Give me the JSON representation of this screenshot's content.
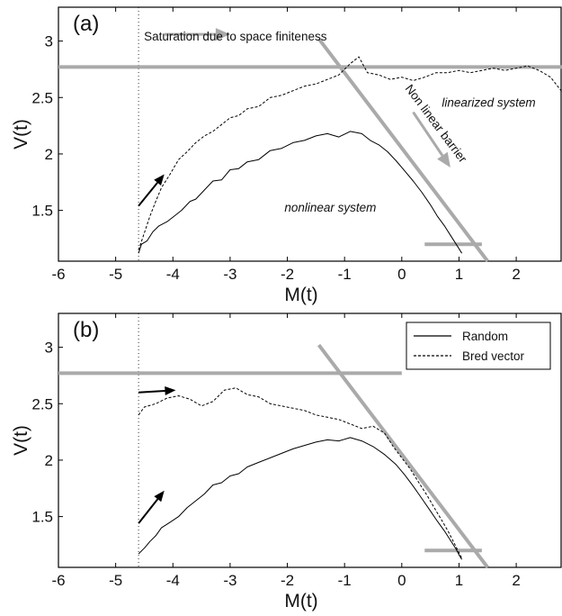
{
  "chart_data": [
    {
      "panel_label": "(a)",
      "type": "line",
      "xlabel": "M(t)",
      "ylabel": "V(t)",
      "xlim": [
        -6,
        2.8
      ],
      "ylim": [
        1.05,
        3.3
      ],
      "x_ticks": [
        "-6",
        "-5",
        "-4",
        "-3",
        "-2",
        "-1",
        "0",
        "1",
        "2"
      ],
      "y_ticks": [
        "1.5",
        "2",
        "2.5",
        "3"
      ],
      "grid": false,
      "series": [
        {
          "style": "solid",
          "points": [
            [
              -4.6,
              1.12
            ],
            [
              -4.55,
              1.2
            ],
            [
              -4.45,
              1.23
            ],
            [
              -4.35,
              1.31
            ],
            [
              -4.25,
              1.36
            ],
            [
              -4.1,
              1.4
            ],
            [
              -3.95,
              1.46
            ],
            [
              -3.85,
              1.5
            ],
            [
              -3.7,
              1.58
            ],
            [
              -3.6,
              1.6
            ],
            [
              -3.45,
              1.68
            ],
            [
              -3.3,
              1.76
            ],
            [
              -3.15,
              1.77
            ],
            [
              -3.0,
              1.86
            ],
            [
              -2.85,
              1.87
            ],
            [
              -2.7,
              1.93
            ],
            [
              -2.5,
              1.95
            ],
            [
              -2.3,
              2.03
            ],
            [
              -2.1,
              2.05
            ],
            [
              -1.9,
              2.1
            ],
            [
              -1.7,
              2.12
            ],
            [
              -1.5,
              2.16
            ],
            [
              -1.3,
              2.18
            ],
            [
              -1.1,
              2.15
            ],
            [
              -0.9,
              2.2
            ],
            [
              -0.7,
              2.18
            ],
            [
              -0.55,
              2.12
            ],
            [
              -0.4,
              2.08
            ],
            [
              -0.25,
              2.02
            ],
            [
              -0.1,
              1.94
            ],
            [
              0.05,
              1.85
            ],
            [
              0.2,
              1.76
            ],
            [
              0.35,
              1.66
            ],
            [
              0.5,
              1.55
            ],
            [
              0.62,
              1.45
            ],
            [
              0.75,
              1.36
            ],
            [
              0.85,
              1.28
            ],
            [
              0.95,
              1.2
            ],
            [
              1.0,
              1.16
            ],
            [
              1.05,
              1.12
            ]
          ]
        },
        {
          "style": "dashed",
          "points": [
            [
              -4.6,
              1.15
            ],
            [
              -4.5,
              1.3
            ],
            [
              -4.4,
              1.45
            ],
            [
              -4.3,
              1.58
            ],
            [
              -4.2,
              1.7
            ],
            [
              -4.05,
              1.82
            ],
            [
              -3.9,
              1.95
            ],
            [
              -3.75,
              2.02
            ],
            [
              -3.6,
              2.1
            ],
            [
              -3.45,
              2.16
            ],
            [
              -3.3,
              2.2
            ],
            [
              -3.15,
              2.26
            ],
            [
              -3.0,
              2.32
            ],
            [
              -2.85,
              2.34
            ],
            [
              -2.7,
              2.4
            ],
            [
              -2.5,
              2.42
            ],
            [
              -2.3,
              2.5
            ],
            [
              -2.1,
              2.52
            ],
            [
              -1.9,
              2.56
            ],
            [
              -1.7,
              2.6
            ],
            [
              -1.5,
              2.62
            ],
            [
              -1.3,
              2.66
            ],
            [
              -1.1,
              2.7
            ],
            [
              -0.9,
              2.8
            ],
            [
              -0.75,
              2.86
            ],
            [
              -0.6,
              2.72
            ],
            [
              -0.4,
              2.7
            ],
            [
              -0.2,
              2.66
            ],
            [
              0.0,
              2.68
            ],
            [
              0.2,
              2.65
            ],
            [
              0.4,
              2.68
            ],
            [
              0.6,
              2.72
            ],
            [
              0.8,
              2.72
            ],
            [
              1.0,
              2.74
            ],
            [
              1.2,
              2.72
            ],
            [
              1.4,
              2.74
            ],
            [
              1.6,
              2.76
            ],
            [
              1.8,
              2.74
            ],
            [
              2.0,
              2.76
            ],
            [
              2.2,
              2.78
            ],
            [
              2.4,
              2.74
            ],
            [
              2.6,
              2.68
            ],
            [
              2.8,
              2.55
            ]
          ]
        }
      ],
      "annotations": [
        "Saturation due to space finiteness",
        "Non linear barrier",
        "linearized system",
        "nonlinear system"
      ]
    },
    {
      "panel_label": "(b)",
      "type": "line",
      "xlabel": "M(t)",
      "ylabel": "V(t)",
      "xlim": [
        -6,
        2.8
      ],
      "ylim": [
        1.05,
        3.3
      ],
      "x_ticks": [
        "-6",
        "-5",
        "-4",
        "-3",
        "-2",
        "-1",
        "0",
        "1",
        "2"
      ],
      "y_ticks": [
        "1.5",
        "2",
        "2.5",
        "3"
      ],
      "grid": false,
      "legend": {
        "position": "top-right",
        "entries": [
          "Random",
          "Bred vector"
        ]
      },
      "series": [
        {
          "name": "Random",
          "style": "solid",
          "points": [
            [
              -4.6,
              1.17
            ],
            [
              -4.5,
              1.22
            ],
            [
              -4.4,
              1.28
            ],
            [
              -4.3,
              1.33
            ],
            [
              -4.2,
              1.4
            ],
            [
              -4.05,
              1.45
            ],
            [
              -3.9,
              1.5
            ],
            [
              -3.75,
              1.58
            ],
            [
              -3.6,
              1.64
            ],
            [
              -3.45,
              1.7
            ],
            [
              -3.3,
              1.78
            ],
            [
              -3.15,
              1.8
            ],
            [
              -3.0,
              1.86
            ],
            [
              -2.85,
              1.88
            ],
            [
              -2.7,
              1.94
            ],
            [
              -2.5,
              1.98
            ],
            [
              -2.3,
              2.02
            ],
            [
              -2.1,
              2.06
            ],
            [
              -1.9,
              2.1
            ],
            [
              -1.7,
              2.13
            ],
            [
              -1.5,
              2.16
            ],
            [
              -1.3,
              2.18
            ],
            [
              -1.1,
              2.17
            ],
            [
              -0.9,
              2.2
            ],
            [
              -0.7,
              2.17
            ],
            [
              -0.5,
              2.12
            ],
            [
              -0.3,
              2.05
            ],
            [
              -0.1,
              1.96
            ],
            [
              0.05,
              1.87
            ],
            [
              0.2,
              1.77
            ],
            [
              0.35,
              1.66
            ],
            [
              0.5,
              1.55
            ],
            [
              0.62,
              1.46
            ],
            [
              0.75,
              1.37
            ],
            [
              0.85,
              1.29
            ],
            [
              0.95,
              1.21
            ],
            [
              1.0,
              1.16
            ],
            [
              1.05,
              1.12
            ]
          ]
        },
        {
          "name": "Bred vector",
          "style": "dashed",
          "points": [
            [
              -4.6,
              2.4
            ],
            [
              -4.5,
              2.47
            ],
            [
              -4.3,
              2.5
            ],
            [
              -4.1,
              2.55
            ],
            [
              -3.9,
              2.57
            ],
            [
              -3.7,
              2.54
            ],
            [
              -3.5,
              2.48
            ],
            [
              -3.3,
              2.52
            ],
            [
              -3.1,
              2.62
            ],
            [
              -2.9,
              2.64
            ],
            [
              -2.7,
              2.58
            ],
            [
              -2.5,
              2.56
            ],
            [
              -2.3,
              2.5
            ],
            [
              -2.1,
              2.48
            ],
            [
              -1.9,
              2.46
            ],
            [
              -1.7,
              2.44
            ],
            [
              -1.5,
              2.4
            ],
            [
              -1.3,
              2.38
            ],
            [
              -1.1,
              2.36
            ],
            [
              -0.9,
              2.32
            ],
            [
              -0.7,
              2.28
            ],
            [
              -0.5,
              2.3
            ],
            [
              -0.3,
              2.24
            ],
            [
              -0.15,
              2.12
            ],
            [
              0.0,
              2.02
            ],
            [
              0.15,
              1.92
            ],
            [
              0.3,
              1.8
            ],
            [
              0.45,
              1.68
            ],
            [
              0.6,
              1.55
            ],
            [
              0.72,
              1.45
            ],
            [
              0.82,
              1.36
            ],
            [
              0.92,
              1.26
            ],
            [
              1.0,
              1.18
            ],
            [
              1.05,
              1.13
            ]
          ]
        }
      ],
      "annotations": []
    }
  ],
  "colors": {
    "guide_gray": "#aaaaaa",
    "curve": "#000000"
  }
}
